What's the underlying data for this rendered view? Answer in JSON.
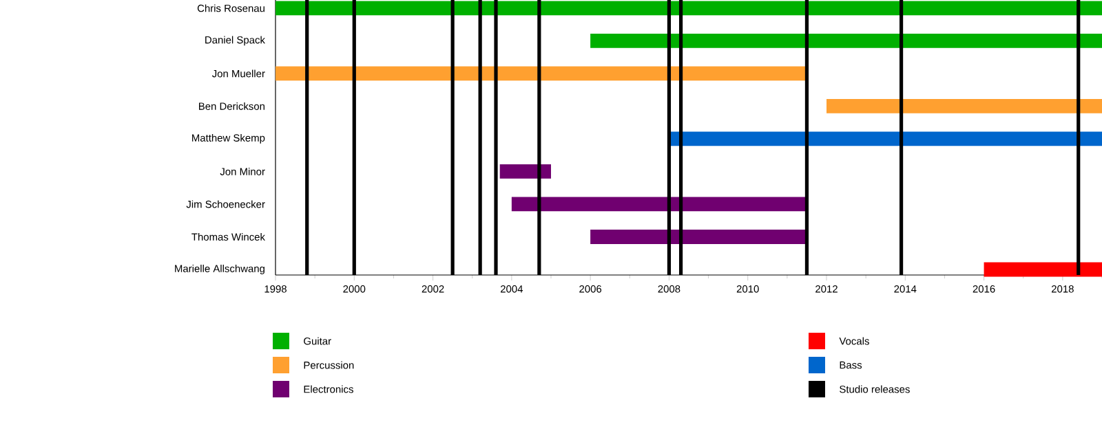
{
  "chart_data": {
    "type": "bar",
    "orientation": "horizontal",
    "categories": [
      "Chris Rosenau",
      "Daniel Spack",
      "Jon Mueller",
      "Ben Derickson",
      "Matthew Skemp",
      "Jon Minor",
      "Jim Schoenecker",
      "Thomas Wincek",
      "Marielle Allschwang"
    ],
    "series": [
      {
        "name": "Guitar",
        "color": "#00b000",
        "values": [
          21,
          13,
          null,
          null,
          null,
          null,
          null,
          null,
          null
        ],
        "base": [
          1998,
          2006,
          null,
          null,
          null,
          null,
          null,
          null,
          null
        ]
      },
      {
        "name": "Percussion",
        "color": "#ffa030",
        "values": [
          null,
          null,
          13.5,
          7,
          null,
          null,
          null,
          null,
          null
        ],
        "base": [
          null,
          null,
          1998,
          2012,
          null,
          null,
          null,
          null,
          null
        ]
      },
      {
        "name": "Electronics",
        "color": "#700070",
        "values": [
          null,
          null,
          null,
          null,
          null,
          1.3,
          7.5,
          5.5,
          null
        ],
        "base": [
          null,
          null,
          null,
          null,
          null,
          2003.7,
          2004,
          2006,
          null
        ]
      },
      {
        "name": "Vocals",
        "color": "#ff0000",
        "values": [
          null,
          null,
          null,
          null,
          null,
          null,
          null,
          null,
          3
        ],
        "base": [
          null,
          null,
          null,
          null,
          null,
          null,
          null,
          null,
          2016
        ]
      },
      {
        "name": "Bass",
        "color": "#0066cc",
        "values": [
          null,
          null,
          null,
          null,
          11,
          null,
          null,
          null,
          null
        ],
        "base": [
          null,
          null,
          null,
          null,
          2008,
          null,
          null,
          null,
          null
        ]
      }
    ],
    "xlim": [
      1998,
      2019
    ],
    "xticks": [
      1998,
      {
        "value": 1999,
        "label": null
      },
      2000,
      {
        "value": 2001,
        "label": null
      },
      2002,
      {
        "value": 2003,
        "label": null
      },
      2004,
      {
        "value": 2005,
        "label": null
      },
      2006,
      {
        "value": 2007,
        "label": null
      },
      2008,
      {
        "value": 2009,
        "label": null
      },
      2010,
      {
        "value": 2011,
        "label": null
      },
      2012,
      {
        "value": 2013,
        "label": null
      },
      2014,
      {
        "value": 2015,
        "label": null
      },
      2016,
      {
        "value": 2017,
        "label": null
      },
      2018,
      {
        "value": 2019,
        "label": null
      }
    ],
    "ref_lines": [
      {
        "axis": "x",
        "value": 1998.8,
        "color": "#000000",
        "label": "Studio releases"
      },
      {
        "axis": "x",
        "value": 2000.0,
        "color": "#000000"
      },
      {
        "axis": "x",
        "value": 2002.5,
        "color": "#000000"
      },
      {
        "axis": "x",
        "value": 2003.2,
        "color": "#000000"
      },
      {
        "axis": "x",
        "value": 2003.6,
        "color": "#000000"
      },
      {
        "axis": "x",
        "value": 2004.7,
        "color": "#000000"
      },
      {
        "axis": "x",
        "value": 2008.0,
        "color": "#000000"
      },
      {
        "axis": "x",
        "value": 2008.3,
        "color": "#000000"
      },
      {
        "axis": "x",
        "value": 2011.5,
        "color": "#000000"
      },
      {
        "axis": "x",
        "value": 2013.9,
        "color": "#000000"
      },
      {
        "axis": "x",
        "value": 2018.4,
        "color": "#000000"
      }
    ],
    "legend": "bottom",
    "grid": false
  }
}
